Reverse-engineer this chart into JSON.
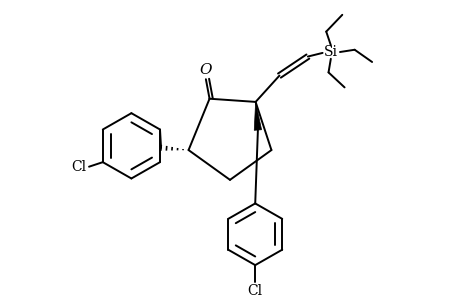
{
  "background_color": "#ffffff",
  "line_color": "#000000",
  "line_width": 1.4,
  "font_size": 10,
  "fig_width": 4.6,
  "fig_height": 3.0,
  "dpi": 100,
  "xlim": [
    0,
    10
  ],
  "ylim": [
    0,
    6.5
  ]
}
